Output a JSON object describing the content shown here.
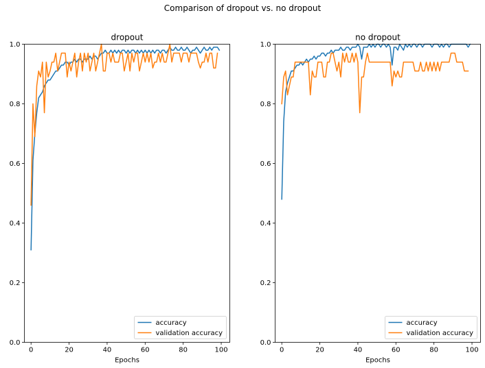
{
  "suptitle": "Comparison of dropout vs. no dropout",
  "colors": {
    "accuracy": "#1f77b4",
    "validation": "#ff7f0e"
  },
  "chart_data": [
    {
      "type": "line",
      "title": "dropout",
      "xlabel": "Epochs",
      "ylabel": "",
      "xlim": [
        -3.5,
        104.5
      ],
      "ylim": [
        0.0,
        1.0
      ],
      "xticks": [
        0,
        20,
        40,
        60,
        80,
        100
      ],
      "yticks": [
        0.0,
        0.2,
        0.4,
        0.6,
        0.8,
        1.0
      ],
      "grid": false,
      "legend": "lower right",
      "series": [
        {
          "name": "accuracy",
          "color": "#1f77b4",
          "x_start": 0,
          "x_step": 1,
          "values": [
            0.31,
            0.61,
            0.7,
            0.77,
            0.82,
            0.83,
            0.84,
            0.86,
            0.87,
            0.88,
            0.88,
            0.89,
            0.9,
            0.91,
            0.91,
            0.92,
            0.93,
            0.93,
            0.94,
            0.94,
            0.93,
            0.94,
            0.94,
            0.95,
            0.94,
            0.95,
            0.95,
            0.94,
            0.95,
            0.95,
            0.95,
            0.96,
            0.95,
            0.96,
            0.96,
            0.95,
            0.96,
            0.97,
            0.97,
            0.98,
            0.97,
            0.97,
            0.98,
            0.97,
            0.98,
            0.97,
            0.98,
            0.97,
            0.98,
            0.98,
            0.97,
            0.98,
            0.97,
            0.98,
            0.98,
            0.97,
            0.98,
            0.97,
            0.98,
            0.97,
            0.98,
            0.97,
            0.98,
            0.97,
            0.98,
            0.97,
            0.98,
            0.98,
            0.97,
            0.98,
            0.98,
            0.97,
            0.98,
            0.99,
            0.98,
            0.98,
            0.99,
            0.98,
            0.98,
            0.99,
            0.98,
            0.98,
            0.99,
            0.98,
            0.97,
            0.98,
            0.98,
            0.99,
            0.98,
            0.97,
            0.98,
            0.99,
            0.98,
            0.98,
            0.99,
            0.98,
            0.99,
            0.99,
            0.99,
            0.98
          ]
        },
        {
          "name": "validation accuracy",
          "color": "#ff7f0e",
          "x_start": 0,
          "x_step": 1,
          "values": [
            0.46,
            0.8,
            0.69,
            0.86,
            0.91,
            0.89,
            0.94,
            0.77,
            0.94,
            0.89,
            0.91,
            0.94,
            0.94,
            0.97,
            0.91,
            0.94,
            0.97,
            0.97,
            0.97,
            0.89,
            0.94,
            0.91,
            0.94,
            0.97,
            0.89,
            0.94,
            0.97,
            0.91,
            0.97,
            0.94,
            0.97,
            0.91,
            0.94,
            0.97,
            0.91,
            0.94,
            0.97,
            1.0,
            0.91,
            0.91,
            0.97,
            0.97,
            0.94,
            0.97,
            0.94,
            0.94,
            0.94,
            0.97,
            0.97,
            0.91,
            0.94,
            0.97,
            0.91,
            0.97,
            0.94,
            0.97,
            0.97,
            0.91,
            0.94,
            0.97,
            0.94,
            0.97,
            0.94,
            0.97,
            0.92,
            0.94,
            0.94,
            0.97,
            0.94,
            0.97,
            0.94,
            0.94,
            0.97,
            1.0,
            0.94,
            0.97,
            0.97,
            0.97,
            0.97,
            0.94,
            0.97,
            0.97,
            0.97,
            0.94,
            0.97,
            0.97,
            0.97,
            0.97,
            0.94,
            0.92,
            0.94,
            0.94,
            0.97,
            0.94,
            0.97,
            0.97,
            0.92,
            0.92,
            0.97
          ]
        }
      ]
    },
    {
      "type": "line",
      "title": "no dropout",
      "xlabel": "Epochs",
      "ylabel": "",
      "xlim": [
        -3.5,
        104.5
      ],
      "ylim": [
        0.0,
        1.0
      ],
      "xticks": [
        0,
        20,
        40,
        60,
        80,
        100
      ],
      "yticks": [
        0.0,
        0.2,
        0.4,
        0.6,
        0.8,
        1.0
      ],
      "grid": false,
      "legend": "lower right",
      "series": [
        {
          "name": "accuracy",
          "color": "#1f77b4",
          "x_start": 0,
          "x_step": 1,
          "values": [
            0.48,
            0.74,
            0.84,
            0.87,
            0.89,
            0.91,
            0.91,
            0.92,
            0.93,
            0.93,
            0.94,
            0.93,
            0.94,
            0.95,
            0.94,
            0.95,
            0.95,
            0.96,
            0.95,
            0.96,
            0.96,
            0.97,
            0.97,
            0.96,
            0.97,
            0.97,
            0.98,
            0.97,
            0.98,
            0.98,
            0.98,
            0.99,
            0.98,
            0.98,
            0.99,
            0.99,
            0.98,
            0.99,
            0.99,
            0.99,
            1.0,
            0.99,
            0.95,
            0.99,
            0.99,
            0.99,
            1.0,
            0.99,
            1.0,
            0.99,
            1.0,
            1.0,
            0.99,
            1.0,
            1.0,
            0.99,
            1.0,
            0.99,
            0.93,
            0.99,
            0.99,
            0.98,
            1.0,
            0.99,
            0.98,
            1.0,
            0.99,
            1.0,
            0.99,
            1.0,
            1.0,
            0.99,
            1.0,
            1.0,
            0.99,
            1.0,
            1.0,
            1.0,
            1.0,
            0.99,
            1.0,
            1.0,
            1.0,
            0.99,
            1.0,
            0.99,
            1.0,
            1.0,
            0.99,
            1.0,
            1.0,
            1.0,
            1.0,
            1.0,
            1.0,
            1.0,
            1.0,
            1.0,
            0.99,
            1.0
          ]
        },
        {
          "name": "validation accuracy",
          "color": "#ff7f0e",
          "x_start": 0,
          "x_step": 1,
          "values": [
            0.8,
            0.89,
            0.91,
            0.83,
            0.86,
            0.89,
            0.89,
            0.94,
            0.94,
            0.94,
            0.94,
            0.94,
            0.94,
            0.94,
            0.94,
            0.83,
            0.91,
            0.89,
            0.89,
            0.94,
            0.94,
            0.94,
            0.89,
            0.89,
            0.94,
            0.94,
            0.97,
            0.97,
            0.94,
            0.91,
            0.94,
            0.89,
            0.97,
            0.94,
            0.97,
            0.94,
            0.94,
            0.97,
            0.94,
            0.97,
            0.94,
            0.77,
            0.89,
            0.89,
            0.94,
            0.97,
            0.94,
            0.94,
            0.94,
            0.94,
            0.94,
            0.94,
            0.94,
            0.94,
            0.94,
            0.94,
            0.94,
            0.94,
            0.86,
            0.91,
            0.89,
            0.91,
            0.89,
            0.89,
            0.94,
            0.94,
            0.94,
            0.94,
            0.94,
            0.94,
            0.91,
            0.91,
            0.91,
            0.94,
            0.91,
            0.91,
            0.94,
            0.91,
            0.94,
            0.91,
            0.94,
            0.91,
            0.94,
            0.91,
            0.94,
            0.94,
            0.94,
            0.94,
            0.94,
            0.97,
            0.97,
            0.97,
            0.94,
            0.94,
            0.94,
            0.94,
            0.91,
            0.91,
            0.91
          ]
        }
      ]
    }
  ]
}
